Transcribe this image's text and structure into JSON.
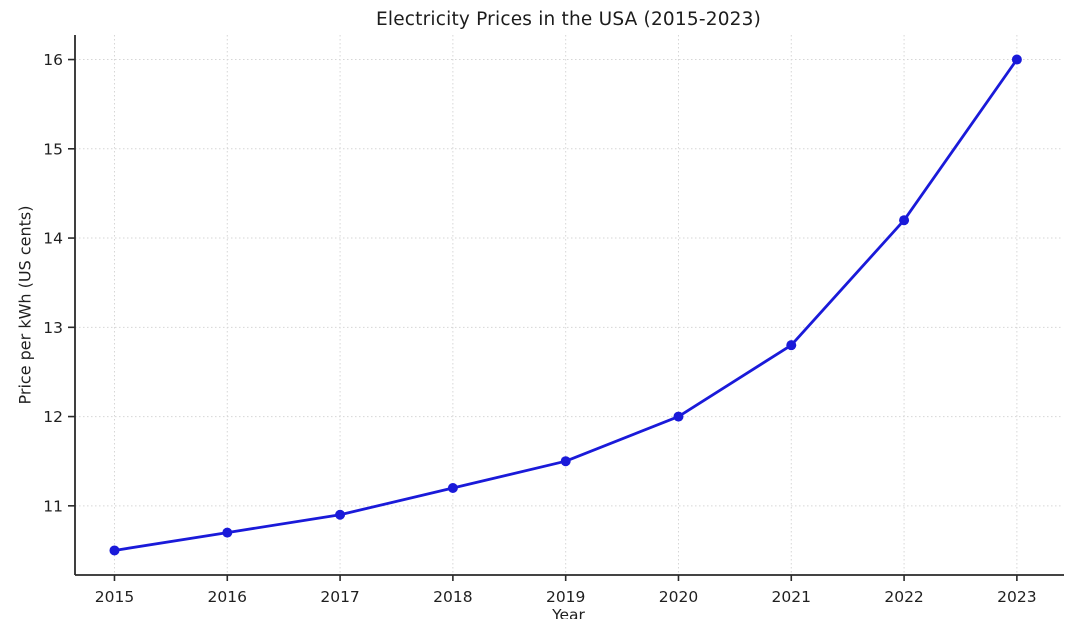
{
  "chart_data": {
    "type": "line",
    "title": "Electricity Prices in the USA (2015-2023)",
    "xlabel": "Year",
    "ylabel": "Price per kWh (US cents)",
    "x": [
      2015,
      2016,
      2017,
      2018,
      2019,
      2020,
      2021,
      2022,
      2023
    ],
    "values": [
      10.5,
      10.7,
      10.9,
      11.2,
      11.5,
      12.0,
      12.8,
      14.2,
      16.0
    ],
    "xticks": [
      2015,
      2016,
      2017,
      2018,
      2019,
      2020,
      2021,
      2022,
      2023
    ],
    "yticks": [
      11,
      12,
      13,
      14,
      15,
      16
    ],
    "xlim": [
      2014.65,
      2023.4
    ],
    "ylim": [
      10.225,
      16.275
    ],
    "grid": true,
    "grid_style": "dotted",
    "legend": false,
    "marker": "circle",
    "colors": {
      "line": "#1a1ad9",
      "grid": "#d6d6d6",
      "axis": "#2a2a2a",
      "text": "#1f1f1f"
    }
  }
}
